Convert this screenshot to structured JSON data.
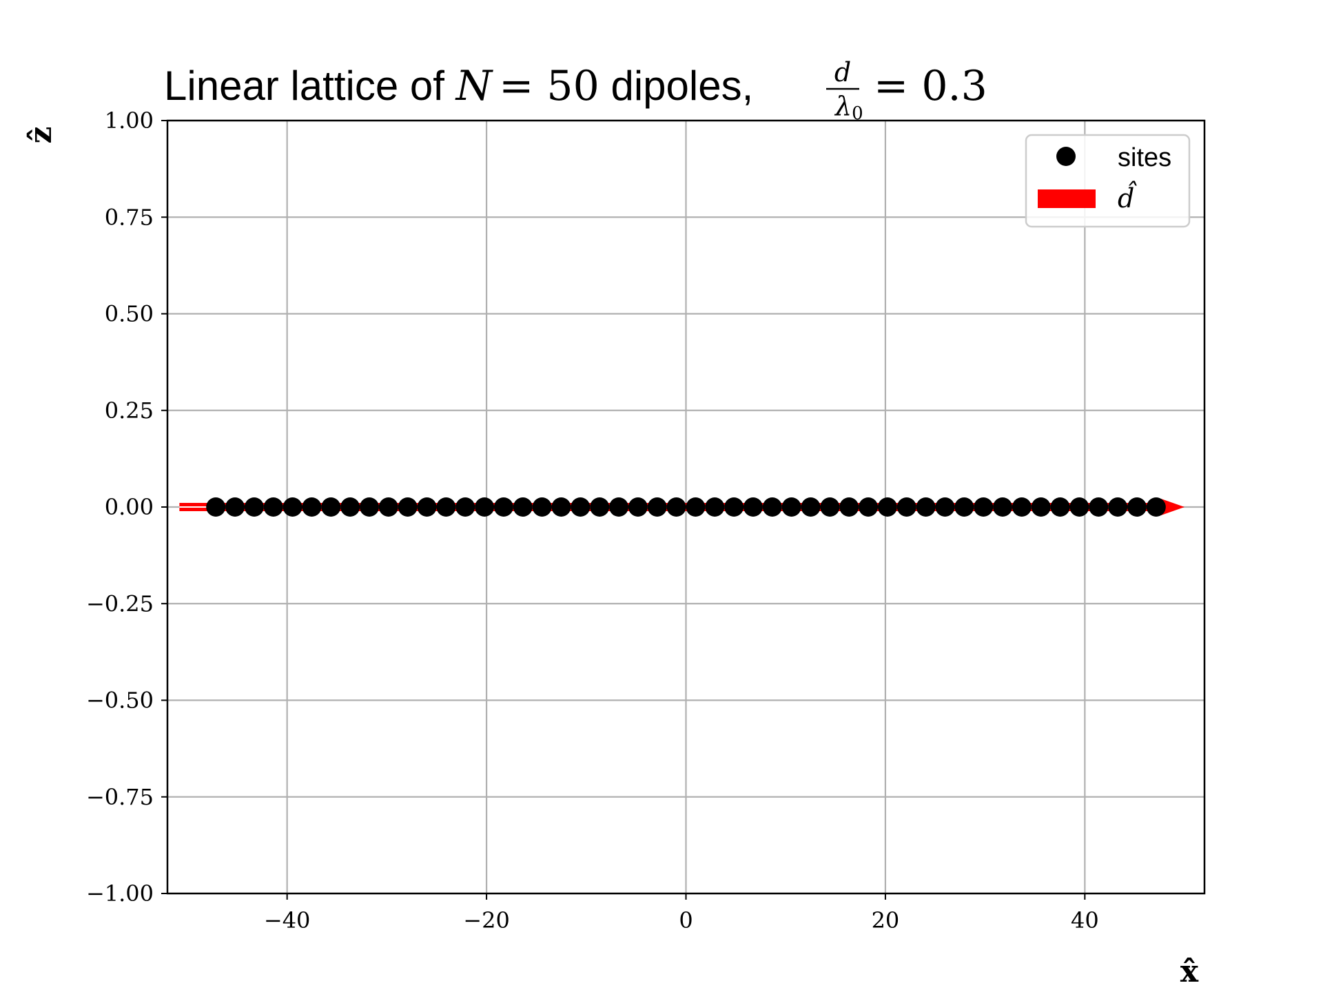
{
  "chart_data": {
    "type": "scatter",
    "title": {
      "prefix": "Linear lattice of ",
      "n_symbol": "N",
      "n_eq": "= 50",
      "middle": " dipoles, ",
      "frac_num": "d",
      "frac_den": "λ",
      "frac_den_sub": "0",
      "value_eq": "= 0.3"
    },
    "xlabel": "x̂",
    "ylabel": "ẑ",
    "xlim": [
      -52,
      52
    ],
    "ylim": [
      -1.0,
      1.0
    ],
    "x_ticks": [
      -40,
      -20,
      0,
      20,
      40
    ],
    "x_tick_labels": [
      "−40",
      "−20",
      "0",
      "20",
      "40"
    ],
    "y_ticks": [
      1.0,
      0.75,
      0.5,
      0.25,
      0.0,
      -0.25,
      -0.5,
      -0.75,
      -1.0
    ],
    "y_tick_labels": [
      "1.00",
      "0.75",
      "0.50",
      "0.25",
      "0.00",
      "−0.25",
      "−0.50",
      "−0.75",
      "−1.00"
    ],
    "grid": true,
    "legend_position": "top-right",
    "series": [
      {
        "name": "sites",
        "marker": "circle",
        "color": "#000000",
        "x_start": -47.15,
        "x_step": 1.9245,
        "count": 50,
        "y": 0.0
      }
    ],
    "dipole_arrow": {
      "name": "d̂",
      "color": "#ff0000",
      "x_from": -50.8,
      "x_to": 50.0,
      "y": 0.0
    },
    "legend": [
      {
        "label": "sites",
        "kind": "marker"
      },
      {
        "label": "d̂",
        "kind": "patch"
      }
    ]
  }
}
